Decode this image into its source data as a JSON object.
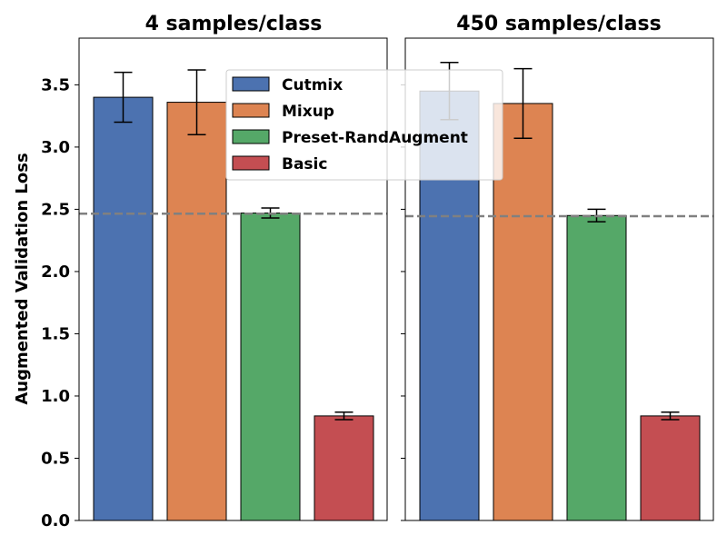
{
  "chart_data": {
    "type": "bar",
    "ylabel": "Augmented Validation Loss",
    "ylim": [
      0,
      3.875
    ],
    "yticks": [
      "0.0",
      "0.5",
      "1.0",
      "1.5",
      "2.0",
      "2.5",
      "3.0",
      "3.5"
    ],
    "legend_position": "top-right",
    "series_colors": [
      "#4c72b0",
      "#dd8452",
      "#55a868",
      "#c44e52"
    ],
    "baseline_color": "#808080",
    "panels": [
      {
        "title": "4 samples/class",
        "series": [
          {
            "name": "Cutmix",
            "value": 3.4,
            "error": 0.2
          },
          {
            "name": "Mixup",
            "value": 3.36,
            "error": 0.26
          },
          {
            "name": "Preset-RandAugment",
            "value": 2.47,
            "error": 0.04
          },
          {
            "name": "Basic",
            "value": 0.84,
            "error": 0.03
          }
        ],
        "baseline": 2.465
      },
      {
        "title": "450 samples/class",
        "series": [
          {
            "name": "Cutmix",
            "value": 3.45,
            "error": 0.23
          },
          {
            "name": "Mixup",
            "value": 3.35,
            "error": 0.28
          },
          {
            "name": "Preset-RandAugment",
            "value": 2.45,
            "error": 0.05
          },
          {
            "name": "Basic",
            "value": 0.84,
            "error": 0.03
          }
        ],
        "baseline": 2.445
      }
    ]
  }
}
